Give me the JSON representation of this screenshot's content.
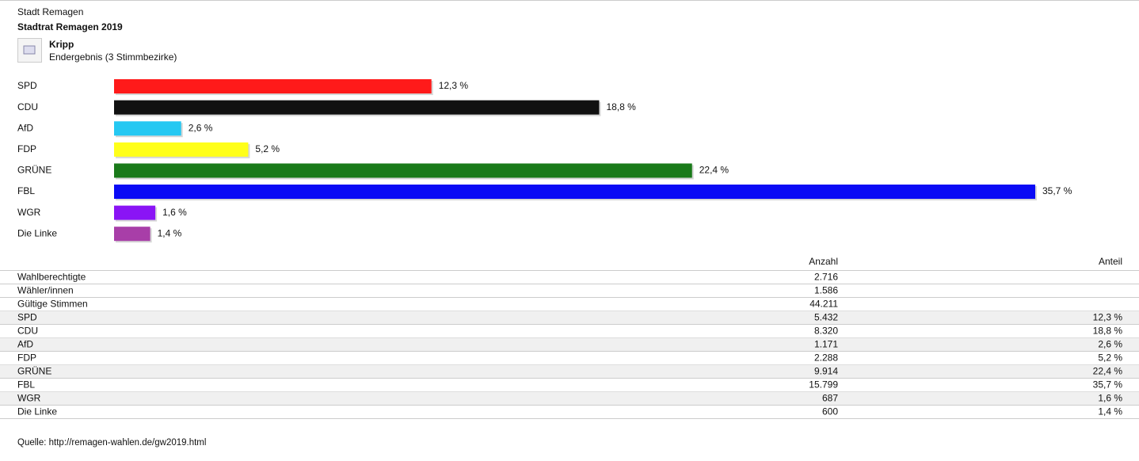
{
  "header": {
    "municipality": "Stadt Remagen",
    "election": "Stadtrat Remagen 2019",
    "district": "Kripp",
    "status": "Endergebnis (3 Stimmbezirke)"
  },
  "chart_data": {
    "type": "bar",
    "orientation": "horizontal",
    "categories": [
      "SPD",
      "CDU",
      "AfD",
      "FDP",
      "GRÜNE",
      "FBL",
      "WGR",
      "Die Linke"
    ],
    "values": [
      12.3,
      18.8,
      2.6,
      5.2,
      22.4,
      35.7,
      1.6,
      1.4
    ],
    "value_labels": [
      "12,3 %",
      "18,8 %",
      "2,6 %",
      "5,2 %",
      "22,4 %",
      "35,7 %",
      "1,6 %",
      "1,4 %"
    ],
    "colors": [
      "#ff1a1a",
      "#111111",
      "#25c8f2",
      "#ffff1a",
      "#1a7a1a",
      "#0a0af5",
      "#8a14f5",
      "#a83ea8"
    ]
  },
  "table": {
    "columns": [
      "Anzahl",
      "Anteil"
    ],
    "rows": [
      {
        "label": "Wahlberechtigte",
        "count": "2.716"
      },
      {
        "label": "Wähler/innen",
        "count": "1.586"
      },
      {
        "label": "Gültige Stimmen",
        "count": "44.211"
      },
      {
        "label": "SPD",
        "count": "5.432",
        "share": "12,3 %"
      },
      {
        "label": "CDU",
        "count": "8.320",
        "share": "18,8 %"
      },
      {
        "label": "AfD",
        "count": "1.171",
        "share": "2,6 %"
      },
      {
        "label": "FDP",
        "count": "2.288",
        "share": "5,2 %"
      },
      {
        "label": "GRÜNE",
        "count": "9.914",
        "share": "22,4 %"
      },
      {
        "label": "FBL",
        "count": "15.799",
        "share": "35,7 %"
      },
      {
        "label": "WGR",
        "count": "687",
        "share": "1,6 %"
      },
      {
        "label": "Die Linke",
        "count": "600",
        "share": "1,4 %"
      }
    ]
  },
  "source": "Quelle: http://remagen-wahlen.de/gw2019.html"
}
